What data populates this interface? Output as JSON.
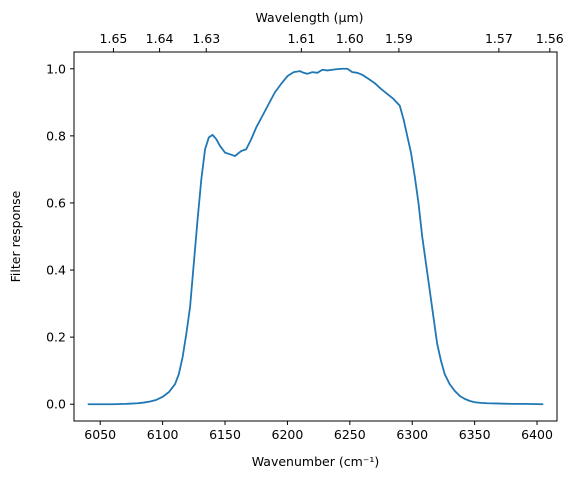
{
  "chart_data": {
    "type": "line",
    "xlabel": "Wavenumber (cm⁻¹)",
    "ylabel": "Filter response",
    "top_axis_label": "Wavelength (μm)",
    "xlim": [
      6029,
      6416
    ],
    "ylim": [
      -0.05,
      1.05
    ],
    "x_ticks": [
      6050,
      6100,
      6150,
      6200,
      6250,
      6300,
      6350,
      6400
    ],
    "y_ticks": [
      0.0,
      0.2,
      0.4,
      0.6,
      0.8,
      1.0
    ],
    "top_ticks": [
      1.65,
      1.64,
      1.63,
      1.61,
      1.6,
      1.59,
      1.57,
      1.56
    ],
    "grid": false,
    "line_color": "#1f77b4",
    "series": [
      {
        "x": [
          6040,
          6050,
          6060,
          6070,
          6080,
          6085,
          6090,
          6095,
          6100,
          6105,
          6110,
          6113,
          6116,
          6119,
          6122,
          6125,
          6128,
          6131,
          6134,
          6137,
          6140,
          6143,
          6146,
          6150,
          6154,
          6158,
          6163,
          6167,
          6171,
          6175,
          6180,
          6185,
          6190,
          6195,
          6200,
          6205,
          6210,
          6213,
          6216,
          6220,
          6224,
          6228,
          6232,
          6236,
          6240,
          6244,
          6248,
          6252,
          6256,
          6260,
          6265,
          6270,
          6275,
          6280,
          6285,
          6290,
          6293,
          6296,
          6299,
          6302,
          6305,
          6308,
          6311,
          6314,
          6317,
          6320,
          6323,
          6326,
          6330,
          6334,
          6338,
          6342,
          6346,
          6350,
          6355,
          6360,
          6370,
          6380,
          6390,
          6405
        ],
        "y": [
          0.0,
          0.0,
          0.0,
          0.001,
          0.003,
          0.005,
          0.008,
          0.013,
          0.022,
          0.036,
          0.06,
          0.09,
          0.14,
          0.21,
          0.29,
          0.42,
          0.55,
          0.67,
          0.76,
          0.795,
          0.803,
          0.79,
          0.77,
          0.75,
          0.745,
          0.74,
          0.755,
          0.76,
          0.79,
          0.825,
          0.86,
          0.895,
          0.93,
          0.955,
          0.978,
          0.99,
          0.993,
          0.988,
          0.985,
          0.99,
          0.988,
          0.997,
          0.995,
          0.997,
          0.999,
          1.0,
          1.0,
          0.99,
          0.988,
          0.982,
          0.97,
          0.957,
          0.94,
          0.925,
          0.91,
          0.89,
          0.85,
          0.8,
          0.75,
          0.68,
          0.6,
          0.5,
          0.42,
          0.34,
          0.26,
          0.18,
          0.13,
          0.09,
          0.06,
          0.04,
          0.025,
          0.016,
          0.01,
          0.006,
          0.004,
          0.003,
          0.002,
          0.001,
          0.001,
          0.0
        ]
      }
    ]
  }
}
